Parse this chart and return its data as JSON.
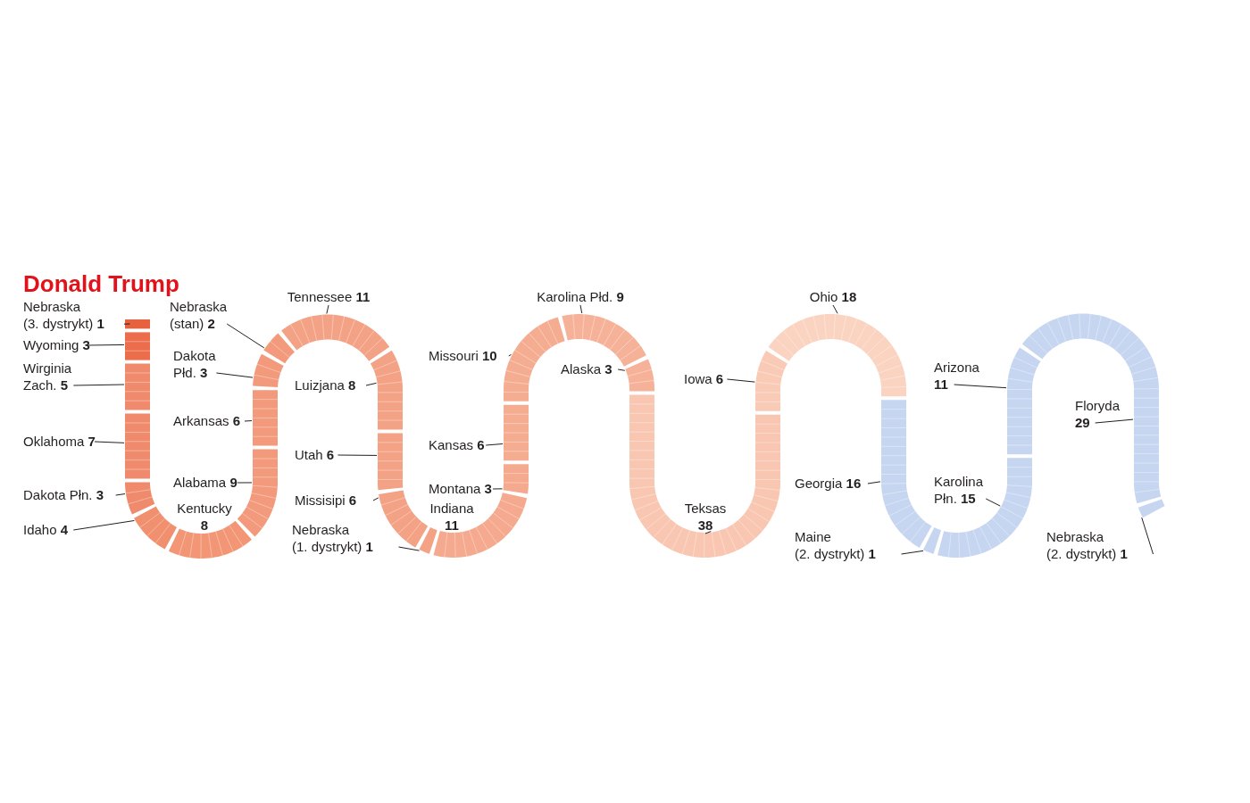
{
  "chart_data": {
    "type": "other",
    "title": "Donald Trump",
    "categories": [
      "Nebraska (3. dystrykt)",
      "Wyoming",
      "Wirginia Zach.",
      "Oklahoma",
      "Dakota Płn.",
      "Idaho",
      "Kentucky",
      "Alabama",
      "Arkansas",
      "Dakota Płd.",
      "Nebraska (stan)",
      "Tennessee",
      "Luizjana",
      "Utah",
      "Missisipi",
      "Nebraska (1. dystrykt)",
      "Indiana",
      "Montana",
      "Kansas",
      "Missouri",
      "Karolina Płd.",
      "Alaska",
      "Teksas",
      "Iowa",
      "Ohio",
      "Georgia",
      "Maine (2. dystrykt)",
      "Karolina Płn.",
      "Arizona",
      "Floryda",
      "Nebraska (2. dystrykt)"
    ],
    "values": [
      1,
      3,
      5,
      7,
      3,
      4,
      8,
      9,
      6,
      3,
      2,
      11,
      8,
      6,
      6,
      1,
      11,
      3,
      6,
      10,
      9,
      3,
      38,
      6,
      18,
      16,
      1,
      15,
      11,
      29,
      1
    ],
    "colors": [
      "#e8613f",
      "#eb6d4c",
      "#ef8b6c",
      "#ef8b6c",
      "#ef8b6c",
      "#f0906f",
      "#f29676",
      "#f29a7b",
      "#f29a7b",
      "#f29a7b",
      "#f29a7b",
      "#f4a285",
      "#f4a285",
      "#f4a285",
      "#f4a285",
      "#f4a285",
      "#f5a98e",
      "#f5a98e",
      "#f5ad92",
      "#f5ad92",
      "#f6b299",
      "#f6b299",
      "#f8c6b1",
      "#f9cbb7",
      "#fad3c1",
      "#c6d6f1",
      "#c6d6f1",
      "#c6d6f1",
      "#c6d6f1",
      "#c6d6f1",
      "#c6d6f1"
    ],
    "data_labels": true
  }
}
